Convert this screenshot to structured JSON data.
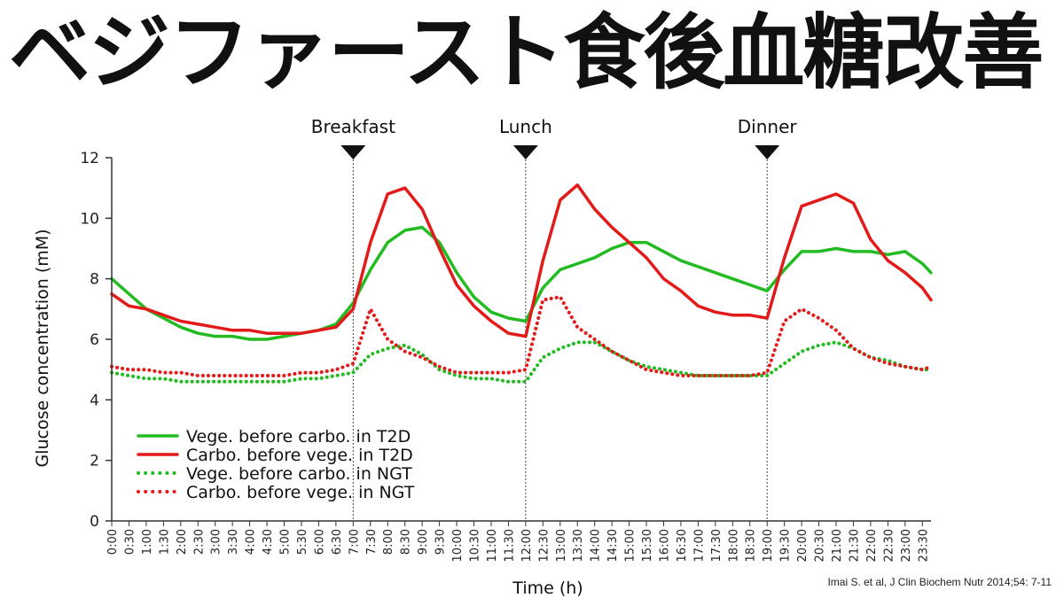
{
  "title": "ベジファースト食後血糖改善",
  "citation": "Imai S. et al, J Clin Biochem Nutr 2014;54: 7-11",
  "chart_data": {
    "type": "line",
    "xlabel": "Time (h)",
    "ylabel": "Glucose concentration (mM)",
    "ylim": [
      0,
      12
    ],
    "yticks": [
      0,
      2,
      4,
      6,
      8,
      10,
      12
    ],
    "xticks": [
      "0:00",
      "0:30",
      "1:00",
      "1:30",
      "2:00",
      "2:30",
      "3:00",
      "3:30",
      "4:00",
      "4:30",
      "5:00",
      "5:30",
      "6:00",
      "6:30",
      "7:00",
      "7:30",
      "8:00",
      "8:30",
      "9:00",
      "9:30",
      "10:00",
      "10:30",
      "11:00",
      "11:30",
      "12:00",
      "12:30",
      "13:00",
      "13:30",
      "14:00",
      "14:30",
      "15:00",
      "15:30",
      "16:00",
      "16:30",
      "17:00",
      "17:30",
      "18:00",
      "18:30",
      "19:00",
      "19:30",
      "20:00",
      "20:30",
      "21:00",
      "21:30",
      "22:00",
      "22:30",
      "23:00",
      "23:30"
    ],
    "xlim": [
      "0:00",
      "23:45"
    ],
    "grid": false,
    "legend_position": "bottom-left",
    "events": [
      {
        "label": "Breakfast",
        "time": "7:00"
      },
      {
        "label": "Lunch",
        "time": "12:00"
      },
      {
        "label": "Dinner",
        "time": "19:00"
      }
    ],
    "series": [
      {
        "name": "Vege. before carbo. in T2D",
        "color": "#22bb22",
        "dash": "solid",
        "x": [
          "0:00",
          "0:30",
          "1:00",
          "1:30",
          "2:00",
          "2:30",
          "3:00",
          "3:30",
          "4:00",
          "4:30",
          "5:00",
          "5:30",
          "6:00",
          "6:30",
          "7:00",
          "7:30",
          "8:00",
          "8:30",
          "9:00",
          "9:30",
          "10:00",
          "10:30",
          "11:00",
          "11:30",
          "12:00",
          "12:30",
          "13:00",
          "13:30",
          "14:00",
          "14:30",
          "15:00",
          "15:30",
          "16:00",
          "16:30",
          "17:00",
          "17:30",
          "18:00",
          "18:30",
          "19:00",
          "19:30",
          "20:00",
          "20:30",
          "21:00",
          "21:30",
          "22:00",
          "22:30",
          "23:00",
          "23:30",
          "23:45"
        ],
        "y": [
          8.0,
          7.5,
          7.0,
          6.7,
          6.4,
          6.2,
          6.1,
          6.1,
          6.0,
          6.0,
          6.1,
          6.2,
          6.3,
          6.5,
          7.2,
          8.3,
          9.2,
          9.6,
          9.7,
          9.2,
          8.2,
          7.4,
          6.9,
          6.7,
          6.6,
          7.7,
          8.3,
          8.5,
          8.7,
          9.0,
          9.2,
          9.2,
          8.9,
          8.6,
          8.4,
          8.2,
          8.0,
          7.8,
          7.6,
          8.3,
          8.9,
          8.9,
          9.0,
          8.9,
          8.9,
          8.8,
          8.9,
          8.5,
          8.2
        ]
      },
      {
        "name": "Carbo. before vege. in T2D",
        "color": "#e31a1a",
        "dash": "solid",
        "x": [
          "0:00",
          "0:30",
          "1:00",
          "1:30",
          "2:00",
          "2:30",
          "3:00",
          "3:30",
          "4:00",
          "4:30",
          "5:00",
          "5:30",
          "6:00",
          "6:30",
          "7:00",
          "7:30",
          "8:00",
          "8:30",
          "9:00",
          "9:30",
          "10:00",
          "10:30",
          "11:00",
          "11:30",
          "12:00",
          "12:30",
          "13:00",
          "13:30",
          "14:00",
          "14:30",
          "15:00",
          "15:30",
          "16:00",
          "16:30",
          "17:00",
          "17:30",
          "18:00",
          "18:30",
          "19:00",
          "19:30",
          "20:00",
          "20:30",
          "21:00",
          "21:30",
          "22:00",
          "22:30",
          "23:00",
          "23:30",
          "23:45"
        ],
        "y": [
          7.5,
          7.1,
          7.0,
          6.8,
          6.6,
          6.5,
          6.4,
          6.3,
          6.3,
          6.2,
          6.2,
          6.2,
          6.3,
          6.4,
          7.0,
          9.2,
          10.8,
          11.0,
          10.3,
          9.0,
          7.8,
          7.1,
          6.6,
          6.2,
          6.1,
          8.6,
          10.6,
          11.1,
          10.3,
          9.7,
          9.2,
          8.7,
          8.0,
          7.6,
          7.1,
          6.9,
          6.8,
          6.8,
          6.7,
          8.7,
          10.4,
          10.6,
          10.8,
          10.5,
          9.3,
          8.6,
          8.2,
          7.7,
          7.3
        ]
      },
      {
        "name": "Vege. before carbo. in NGT",
        "color": "#22bb22",
        "dash": "dotted",
        "x": [
          "0:00",
          "0:30",
          "1:00",
          "1:30",
          "2:00",
          "2:30",
          "3:00",
          "3:30",
          "4:00",
          "4:30",
          "5:00",
          "5:30",
          "6:00",
          "6:30",
          "7:00",
          "7:30",
          "8:00",
          "8:30",
          "9:00",
          "9:30",
          "10:00",
          "10:30",
          "11:00",
          "11:30",
          "12:00",
          "12:30",
          "13:00",
          "13:30",
          "14:00",
          "14:30",
          "15:00",
          "15:30",
          "16:00",
          "16:30",
          "17:00",
          "17:30",
          "18:00",
          "18:30",
          "19:00",
          "19:30",
          "20:00",
          "20:30",
          "21:00",
          "21:30",
          "22:00",
          "22:30",
          "23:00",
          "23:30",
          "23:45"
        ],
        "y": [
          4.9,
          4.8,
          4.7,
          4.7,
          4.6,
          4.6,
          4.6,
          4.6,
          4.6,
          4.6,
          4.6,
          4.7,
          4.7,
          4.8,
          4.9,
          5.5,
          5.7,
          5.8,
          5.5,
          5.0,
          4.8,
          4.7,
          4.7,
          4.6,
          4.6,
          5.4,
          5.7,
          5.9,
          5.9,
          5.6,
          5.3,
          5.1,
          5.0,
          4.9,
          4.8,
          4.8,
          4.8,
          4.8,
          4.8,
          5.2,
          5.6,
          5.8,
          5.9,
          5.7,
          5.4,
          5.3,
          5.1,
          5.0,
          5.0
        ]
      },
      {
        "name": "Carbo. before vege. in NGT",
        "color": "#e31a1a",
        "dash": "dotted",
        "x": [
          "0:00",
          "0:30",
          "1:00",
          "1:30",
          "2:00",
          "2:30",
          "3:00",
          "3:30",
          "4:00",
          "4:30",
          "5:00",
          "5:30",
          "6:00",
          "6:30",
          "7:00",
          "7:30",
          "8:00",
          "8:30",
          "9:00",
          "9:30",
          "10:00",
          "10:30",
          "11:00",
          "11:30",
          "12:00",
          "12:30",
          "13:00",
          "13:30",
          "14:00",
          "14:30",
          "15:00",
          "15:30",
          "16:00",
          "16:30",
          "17:00",
          "17:30",
          "18:00",
          "18:30",
          "19:00",
          "19:30",
          "20:00",
          "20:30",
          "21:00",
          "21:30",
          "22:00",
          "22:30",
          "23:00",
          "23:30",
          "23:45"
        ],
        "y": [
          5.1,
          5.0,
          5.0,
          4.9,
          4.9,
          4.8,
          4.8,
          4.8,
          4.8,
          4.8,
          4.8,
          4.9,
          4.9,
          5.0,
          5.2,
          7.0,
          6.0,
          5.6,
          5.4,
          5.1,
          4.9,
          4.9,
          4.9,
          4.9,
          5.0,
          7.3,
          7.4,
          6.4,
          6.0,
          5.6,
          5.3,
          5.0,
          4.9,
          4.8,
          4.8,
          4.8,
          4.8,
          4.8,
          4.9,
          6.6,
          7.0,
          6.7,
          6.3,
          5.7,
          5.4,
          5.2,
          5.1,
          5.0,
          5.1
        ]
      }
    ]
  }
}
